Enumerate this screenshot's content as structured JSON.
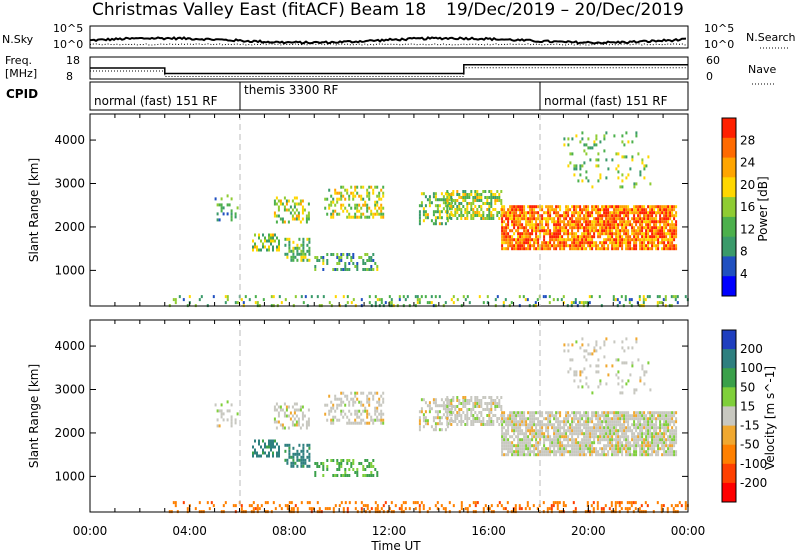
{
  "header": {
    "title": "Christmas Valley East (fitACF)",
    "beam": "Beam 18",
    "date_range": "19/Dec/2019 – 20/Dec/2019"
  },
  "noise_panel": {
    "left_label": "N.Sky",
    "left_top_tick": "10^5",
    "left_bottom_tick": "10^0",
    "right_label": "N.Search",
    "right_top_tick": "10^5",
    "right_bottom_tick": "10^0"
  },
  "freq_panel": {
    "left_label_1": "Freq.",
    "left_label_2": "[MHz]",
    "left_top_tick": "18",
    "left_bottom_tick": "8",
    "right_label": "Nave",
    "right_top_tick": "60",
    "right_bottom_tick": "0",
    "freq_steps": [
      {
        "from_hour": 0,
        "to_hour": 3.0,
        "mhz": 13
      },
      {
        "from_hour": 3.0,
        "to_hour": 15.0,
        "mhz": 10.5
      },
      {
        "from_hour": 15.0,
        "to_hour": 24.0,
        "mhz": 14.5
      }
    ]
  },
  "cpid": {
    "label": "CPID",
    "segments": [
      {
        "start_hour": 0,
        "text": "normal (fast) 151 RF"
      },
      {
        "start_hour": 6,
        "text": "themis 3300 RF"
      },
      {
        "start_hour": 18,
        "text": "normal (fast) 151 RF"
      }
    ]
  },
  "x_axis": {
    "label": "Time UT",
    "range_hours": [
      0,
      24
    ],
    "tick_hours": [
      0,
      4,
      8,
      12,
      16,
      20,
      24
    ],
    "tick_labels": [
      "00:00",
      "04:00",
      "08:00",
      "12:00",
      "16:00",
      "20:00",
      "00:00"
    ],
    "mode_change_hours": [
      6,
      18
    ]
  },
  "y_axis": {
    "label": "Slant Range [km]",
    "range_km": [
      180,
      4600
    ],
    "tick_values": [
      1000,
      2000,
      3000,
      4000
    ],
    "tick_labels": [
      "1000",
      "2000",
      "3000",
      "4000"
    ]
  },
  "chart_data": [
    {
      "type": "heatmap",
      "panel": "power",
      "colorbar_label": "Power [dB]",
      "colorbar_ticks": [
        "4",
        "8",
        "12",
        "16",
        "20",
        "24",
        "28"
      ],
      "colorbar_range": [
        0,
        30
      ],
      "scatter_clusters": [
        {
          "t0": 5.0,
          "t1": 5.9,
          "r0": 2150,
          "r1": 2750,
          "level": 0.35,
          "density": 0.25
        },
        {
          "t0": 6.5,
          "t1": 7.6,
          "r0": 1450,
          "r1": 1850,
          "level": 0.45,
          "density": 0.55
        },
        {
          "t0": 7.8,
          "t1": 8.8,
          "r0": 1250,
          "r1": 1750,
          "level": 0.45,
          "density": 0.45
        },
        {
          "t0": 7.3,
          "t1": 8.8,
          "r0": 2100,
          "r1": 2700,
          "level": 0.5,
          "density": 0.3
        },
        {
          "t0": 9.0,
          "t1": 11.5,
          "r0": 1000,
          "r1": 1400,
          "level": 0.35,
          "density": 0.4
        },
        {
          "t0": 9.4,
          "t1": 11.8,
          "r0": 2200,
          "r1": 2950,
          "level": 0.55,
          "density": 0.4
        },
        {
          "t0": 13.2,
          "t1": 14.5,
          "r0": 2100,
          "r1": 2800,
          "level": 0.45,
          "density": 0.45
        },
        {
          "t0": 14.3,
          "t1": 16.5,
          "r0": 2200,
          "r1": 2850,
          "level": 0.5,
          "density": 0.6
        },
        {
          "t0": 16.5,
          "t1": 23.5,
          "r0": 1500,
          "r1": 2500,
          "level": 0.8,
          "density": 0.85
        },
        {
          "t0": 19.0,
          "t1": 22.5,
          "r0": 2900,
          "r1": 4200,
          "level": 0.45,
          "density": 0.12
        },
        {
          "t0": 3.0,
          "t1": 24.0,
          "r0": 180,
          "r1": 430,
          "level": 0.4,
          "density": 0.22
        }
      ]
    },
    {
      "type": "heatmap",
      "panel": "velocity",
      "colorbar_label": "Velocity [m s^-1]",
      "colorbar_ticks": [
        "200",
        "100",
        "50",
        "15",
        "-15",
        "-50",
        "-100",
        "-200"
      ],
      "colorbar_range": [
        -250,
        250
      ],
      "scatter_clusters": [
        {
          "t0": 5.0,
          "t1": 5.9,
          "r0": 2150,
          "r1": 2750,
          "velocity": 0,
          "density": 0.25
        },
        {
          "t0": 6.5,
          "t1": 7.6,
          "r0": 1450,
          "r1": 1850,
          "velocity": 90,
          "density": 0.55
        },
        {
          "t0": 7.8,
          "t1": 8.8,
          "r0": 1250,
          "r1": 1750,
          "velocity": 90,
          "density": 0.45
        },
        {
          "t0": 7.3,
          "t1": 8.8,
          "r0": 2100,
          "r1": 2700,
          "velocity": 0,
          "density": 0.3
        },
        {
          "t0": 9.0,
          "t1": 11.5,
          "r0": 1000,
          "r1": 1400,
          "velocity": 40,
          "density": 0.4
        },
        {
          "t0": 9.4,
          "t1": 11.8,
          "r0": 2200,
          "r1": 2950,
          "velocity": 0,
          "density": 0.4
        },
        {
          "t0": 13.2,
          "t1": 14.5,
          "r0": 2100,
          "r1": 2800,
          "velocity": 0,
          "density": 0.45
        },
        {
          "t0": 14.3,
          "t1": 16.5,
          "r0": 2200,
          "r1": 2850,
          "velocity": 0,
          "density": 0.6
        },
        {
          "t0": 16.5,
          "t1": 23.5,
          "r0": 1500,
          "r1": 2500,
          "velocity": 0,
          "density": 0.85
        },
        {
          "t0": 19.0,
          "t1": 22.5,
          "r0": 2900,
          "r1": 4200,
          "velocity": 0,
          "density": 0.12
        },
        {
          "t0": 3.0,
          "t1": 24.0,
          "r0": 180,
          "r1": 430,
          "velocity": -60,
          "density": 0.3
        }
      ]
    }
  ]
}
